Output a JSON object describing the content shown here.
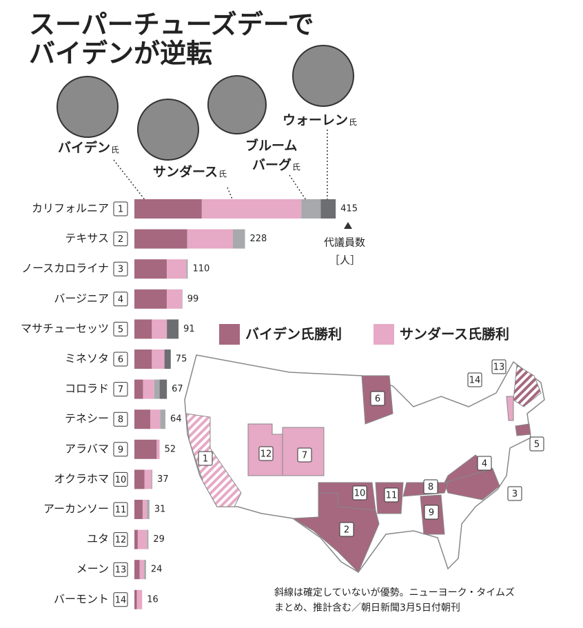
{
  "chart_data": {
    "type": "bar",
    "title": [
      "スーパーチューズデーで",
      "バイデンが逆転"
    ],
    "honorific": "氏",
    "categories": [
      "カリフォルニア",
      "テキサス",
      "ノースカロライナ",
      "バージニア",
      "マサチューセッツ",
      "ミネソタ",
      "コロラド",
      "テネシー",
      "アラバマ",
      "オクラホマ",
      "アーカンソー",
      "ユタ",
      "メーン",
      "バーモント"
    ],
    "numbers": [
      1,
      2,
      3,
      4,
      5,
      6,
      7,
      8,
      9,
      10,
      11,
      12,
      13,
      14
    ],
    "totals": [
      415,
      228,
      110,
      99,
      91,
      75,
      67,
      64,
      52,
      37,
      31,
      29,
      24,
      16
    ],
    "series": [
      {
        "name_lines": [
          "バイデン"
        ],
        "color": "#a5687f",
        "values": [
          139,
          109,
          67,
          67,
          36,
          36,
          18,
          33,
          46,
          21,
          17,
          7,
          11,
          5
        ]
      },
      {
        "name_lines": [
          "サンダース"
        ],
        "color": "#e6a9c6",
        "values": [
          205,
          94,
          40,
          31,
          31,
          26,
          23,
          20,
          6,
          14,
          9,
          19,
          9,
          11
        ]
      },
      {
        "name_lines": [
          "ブルーム",
          "バーグ"
        ],
        "color": "#a7a9ac",
        "values": [
          40,
          25,
          3,
          1,
          0,
          0,
          11,
          11,
          0,
          2,
          5,
          3,
          4,
          0
        ]
      },
      {
        "name_lines": [
          "ウォーレン"
        ],
        "color": "#6d6e71",
        "values": [
          31,
          0,
          0,
          0,
          24,
          13,
          15,
          0,
          0,
          0,
          0,
          0,
          0,
          0
        ]
      }
    ],
    "unit_label": [
      "代議員数",
      "［人］"
    ],
    "map": {
      "legend": [
        "バイデン氏勝利",
        "サンダース氏勝利"
      ],
      "winners": [
        1,
        0,
        0,
        0,
        0,
        0,
        1,
        0,
        0,
        0,
        0,
        1,
        0,
        1
      ],
      "uncertain": [
        true,
        false,
        false,
        false,
        false,
        false,
        false,
        false,
        false,
        false,
        false,
        false,
        true,
        false
      ]
    },
    "note": [
      "斜線は確定していないが優勢。ニューヨーク・タイムズ",
      "まとめ、推計含む／朝日新聞3月5日付朝刊"
    ]
  }
}
